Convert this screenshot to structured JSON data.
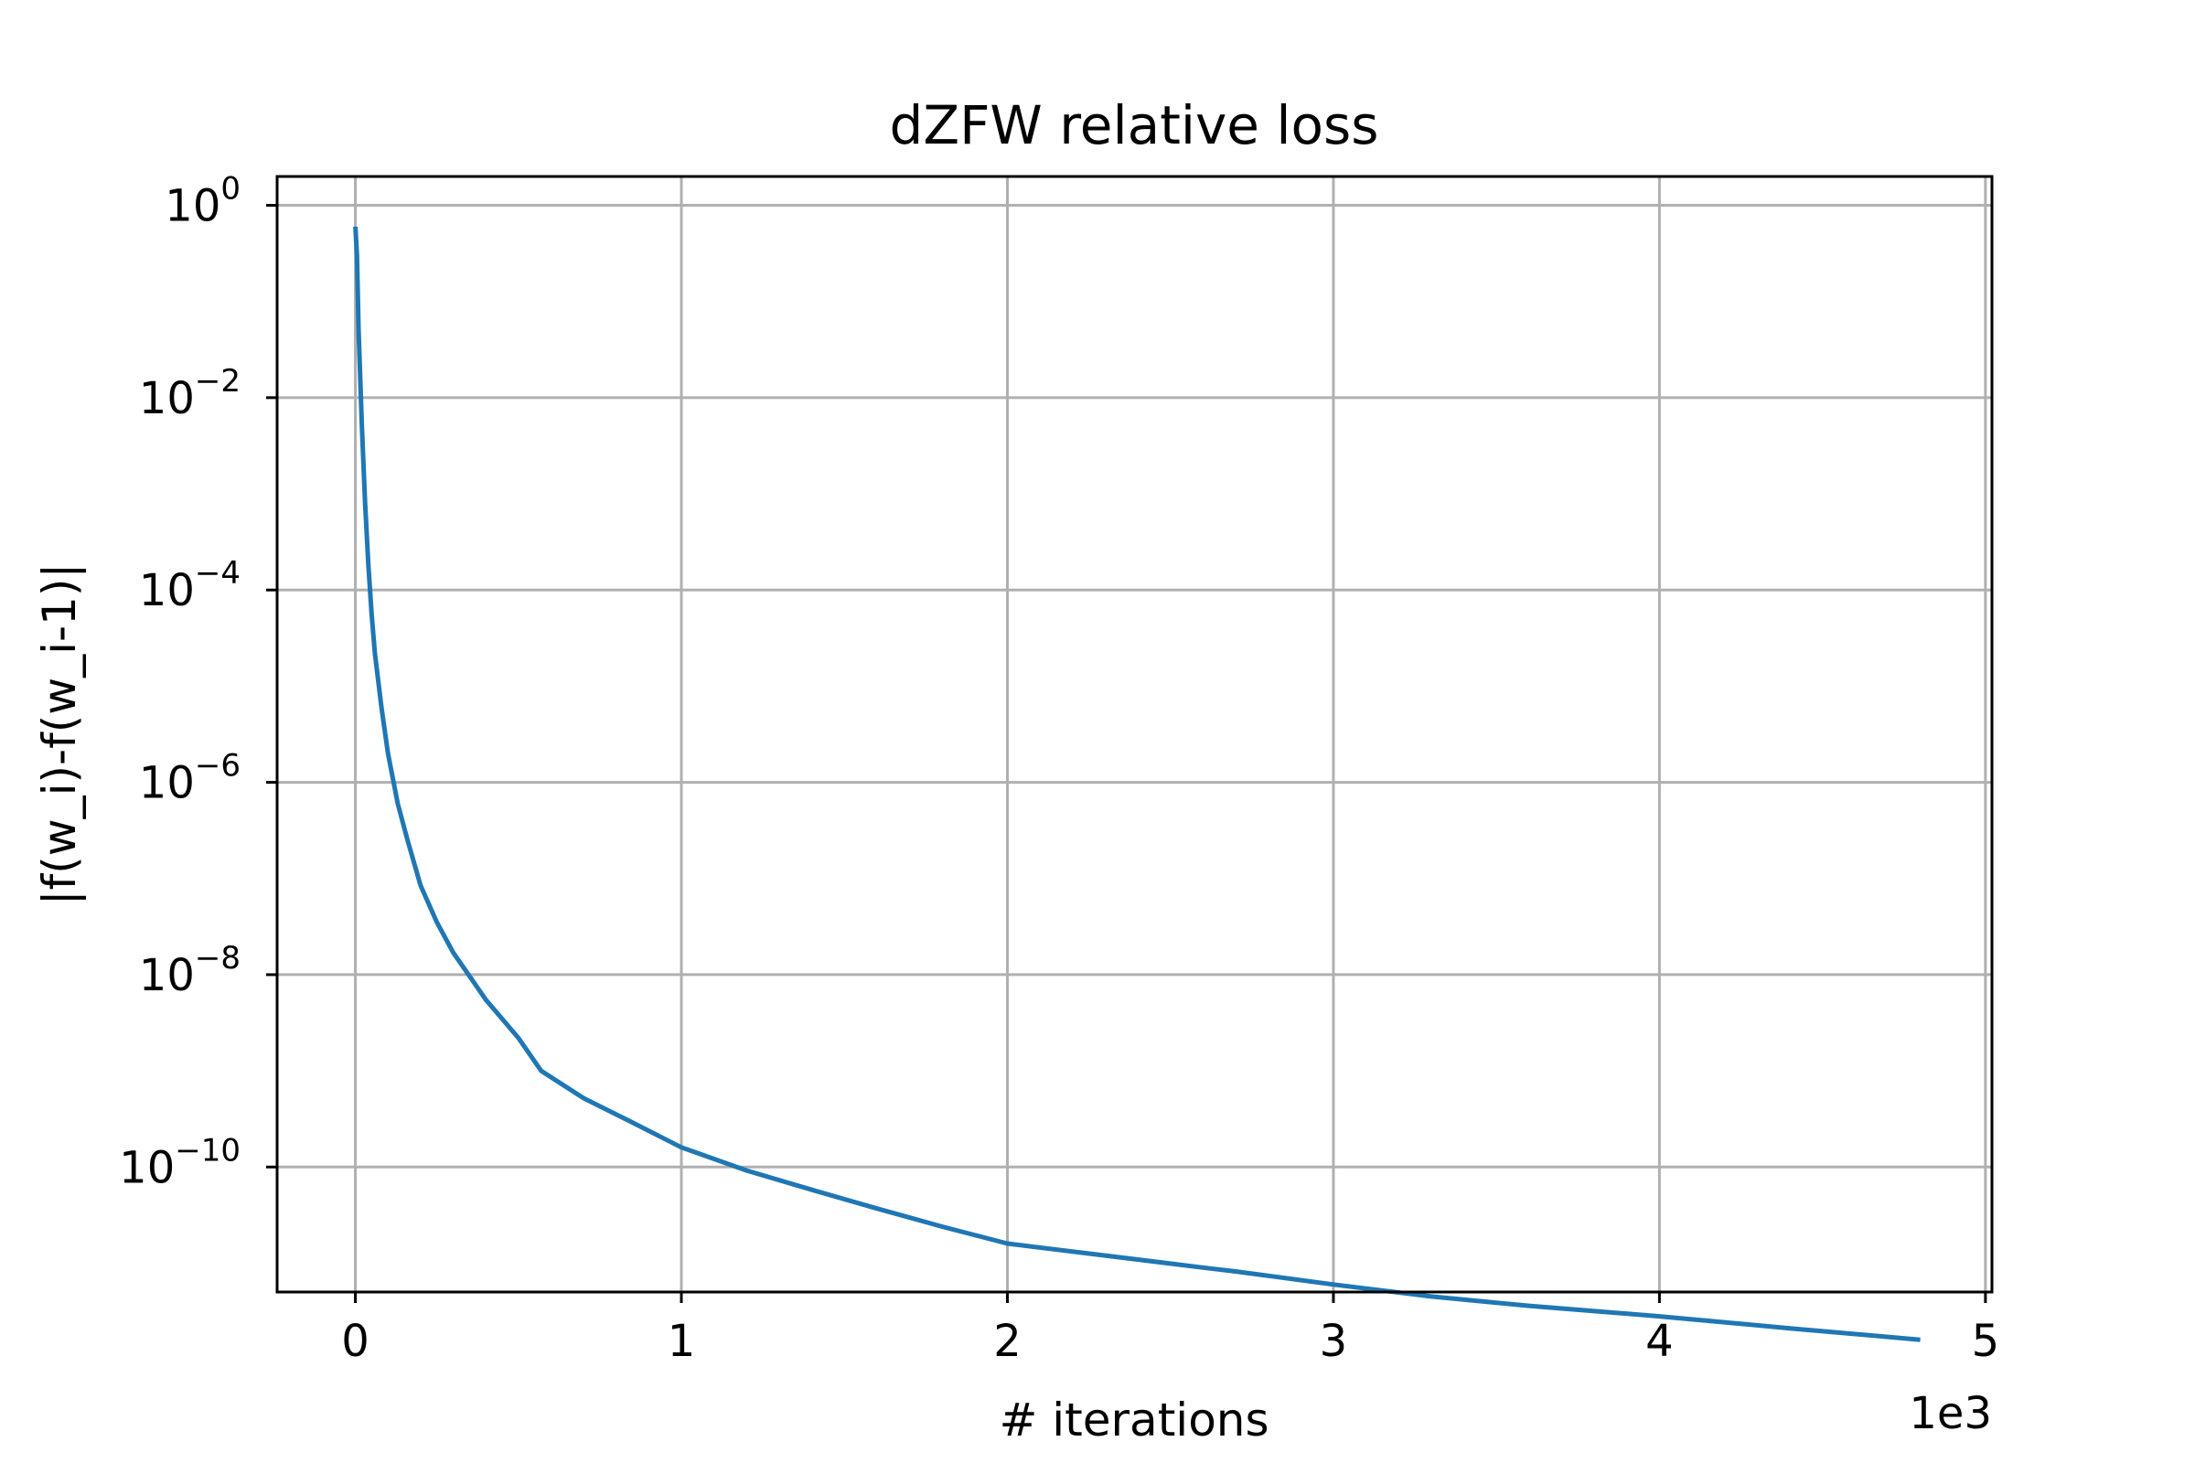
{
  "chart_data": {
    "type": "line",
    "title": "dZFW relative loss",
    "xlabel": "# iterations",
    "ylabel": "|f(w_i)-f(w_i-1)|",
    "x_offset_text": "1e3",
    "x_scale": "linear",
    "y_scale": "log",
    "xlim": [
      -240,
      5020
    ],
    "ylim_log10": [
      -11.3,
      0.3
    ],
    "grid": true,
    "legend": "none",
    "x_ticks": [
      {
        "value": 0,
        "label": "0"
      },
      {
        "value": 1000,
        "label": "1"
      },
      {
        "value": 2000,
        "label": "2"
      },
      {
        "value": 3000,
        "label": "3"
      },
      {
        "value": 4000,
        "label": "4"
      },
      {
        "value": 5000,
        "label": "5"
      }
    ],
    "y_ticks": [
      {
        "exp": 0,
        "base": "10",
        "sup": "0"
      },
      {
        "exp": -2,
        "base": "10",
        "sup": "−2"
      },
      {
        "exp": -4,
        "base": "10",
        "sup": "−4"
      },
      {
        "exp": -6,
        "base": "10",
        "sup": "−6"
      },
      {
        "exp": -8,
        "base": "10",
        "sup": "−8"
      },
      {
        "exp": -10,
        "base": "10",
        "sup": "−10"
      }
    ],
    "series": [
      {
        "color": "#1f77b4",
        "x": [
          0,
          5,
          10,
          20,
          30,
          40,
          50,
          60,
          80,
          100,
          130,
          160,
          200,
          250,
          300,
          400,
          500,
          570,
          700,
          850,
          1000,
          1200,
          1400,
          1600,
          1800,
          2000,
          2300,
          2600,
          2700,
          3000,
          3300,
          3600,
          4000,
          4400,
          4800
        ],
        "y": [
          0.6,
          0.3,
          0.05,
          0.005,
          0.0008,
          0.00018,
          5.5e-05,
          2.2e-05,
          6e-06,
          2e-06,
          6e-07,
          2.5e-07,
          8.5e-08,
          3.5e-08,
          1.7e-08,
          5.5e-09,
          2.2e-09,
          1e-09,
          5.2e-10,
          2.9e-10,
          1.6e-10,
          9.2e-11,
          5.8e-11,
          3.7e-11,
          2.4e-11,
          1.6e-11,
          1.2e-11,
          9e-12,
          8.2e-12,
          6e-12,
          4.5e-12,
          3.6e-12,
          2.8e-12,
          2.1e-12,
          1.6e-12
        ]
      }
    ]
  }
}
